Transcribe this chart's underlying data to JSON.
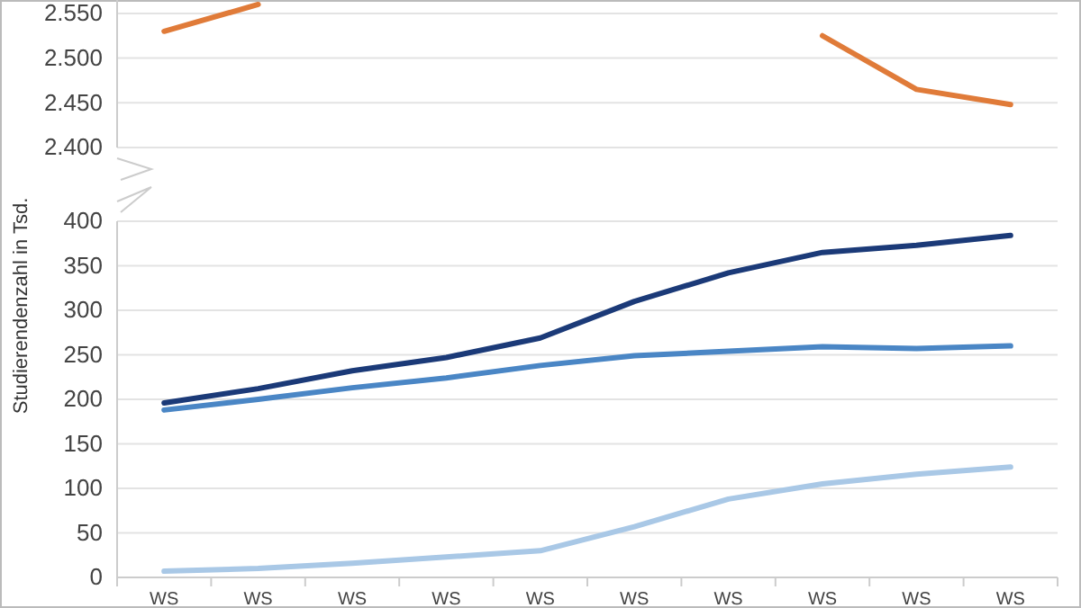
{
  "chart_data": [
    {
      "type": "line",
      "ylim": [
        2400,
        2565
      ],
      "yticks": [
        {
          "value": 2400,
          "label": "2.400"
        },
        {
          "value": 2450,
          "label": "2.450"
        },
        {
          "value": 2500,
          "label": "2.500"
        },
        {
          "value": 2550,
          "label": "2.550"
        }
      ],
      "grid": "y",
      "tick_labels": "y",
      "series": [
        {
          "color": "#e07b39",
          "values": [
            2530,
            2560,
            null,
            null,
            null,
            null,
            null,
            2525,
            2465,
            2448
          ]
        }
      ]
    },
    {
      "type": "line",
      "categories": [
        "WS",
        "WS",
        "WS",
        "WS",
        "WS",
        "WS",
        "WS",
        "WS",
        "WS",
        "WS"
      ],
      "ylim": [
        0,
        400
      ],
      "yticks": [
        0,
        50,
        100,
        150,
        200,
        250,
        300,
        350,
        400
      ],
      "grid": "y",
      "ylabel": "Studierendenzahl in Tsd.",
      "series": [
        {
          "color": "#1b3a78",
          "values": [
            196,
            212,
            232,
            247,
            269,
            310,
            342,
            365,
            373,
            384
          ]
        },
        {
          "color": "#4a86c5",
          "values": [
            188,
            200,
            213,
            224,
            238,
            249,
            254,
            259,
            257,
            260
          ]
        },
        {
          "color": "#a9c8e6",
          "values": [
            7,
            10,
            16,
            23,
            30,
            57,
            88,
            105,
            116,
            124
          ]
        }
      ]
    }
  ]
}
